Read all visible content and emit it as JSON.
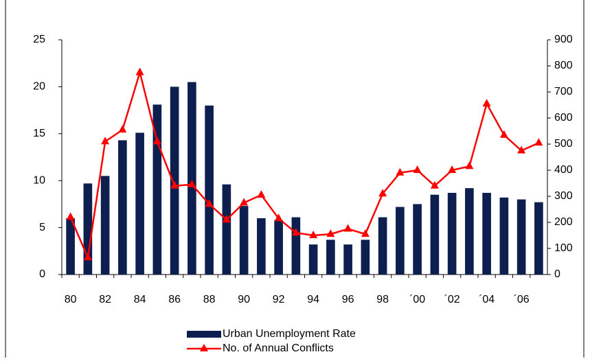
{
  "chart_data": {
    "type": "bar-line",
    "categories": [
      "80",
      null,
      "82",
      null,
      "84",
      null,
      "86",
      null,
      "88",
      null,
      "90",
      null,
      "92",
      null,
      "94",
      null,
      "96",
      null,
      "98",
      null,
      "´00",
      null,
      "´02",
      null,
      "´04",
      null,
      "´06",
      null
    ],
    "series": [
      {
        "name": "Urban Unemployment Rate",
        "type": "bar",
        "color": "#0d1f4f",
        "axis": "y",
        "values": [
          6.0,
          9.7,
          10.5,
          14.3,
          15.1,
          18.1,
          20.0,
          20.5,
          18.0,
          9.6,
          7.3,
          6.0,
          5.8,
          6.1,
          3.2,
          3.7,
          3.2,
          3.7,
          6.1,
          7.2,
          7.5,
          8.5,
          8.7,
          9.2,
          8.7,
          8.2,
          8.0,
          7.7
        ]
      },
      {
        "name": "No. of Annual Conflicts",
        "type": "line",
        "color": "#ff0000",
        "axis": "y2",
        "values": [
          220,
          65,
          510,
          555,
          775,
          510,
          340,
          345,
          270,
          210,
          275,
          305,
          215,
          160,
          150,
          155,
          175,
          155,
          310,
          390,
          400,
          340,
          400,
          415,
          655,
          535,
          475,
          505
        ]
      }
    ],
    "ylim": [
      0,
      25
    ],
    "yticks": [
      0,
      5,
      10,
      15,
      20,
      25
    ],
    "y2lim": [
      0,
      900
    ],
    "y2ticks": [
      0,
      100,
      200,
      300,
      400,
      500,
      600,
      700,
      800,
      900
    ],
    "grid": false
  }
}
